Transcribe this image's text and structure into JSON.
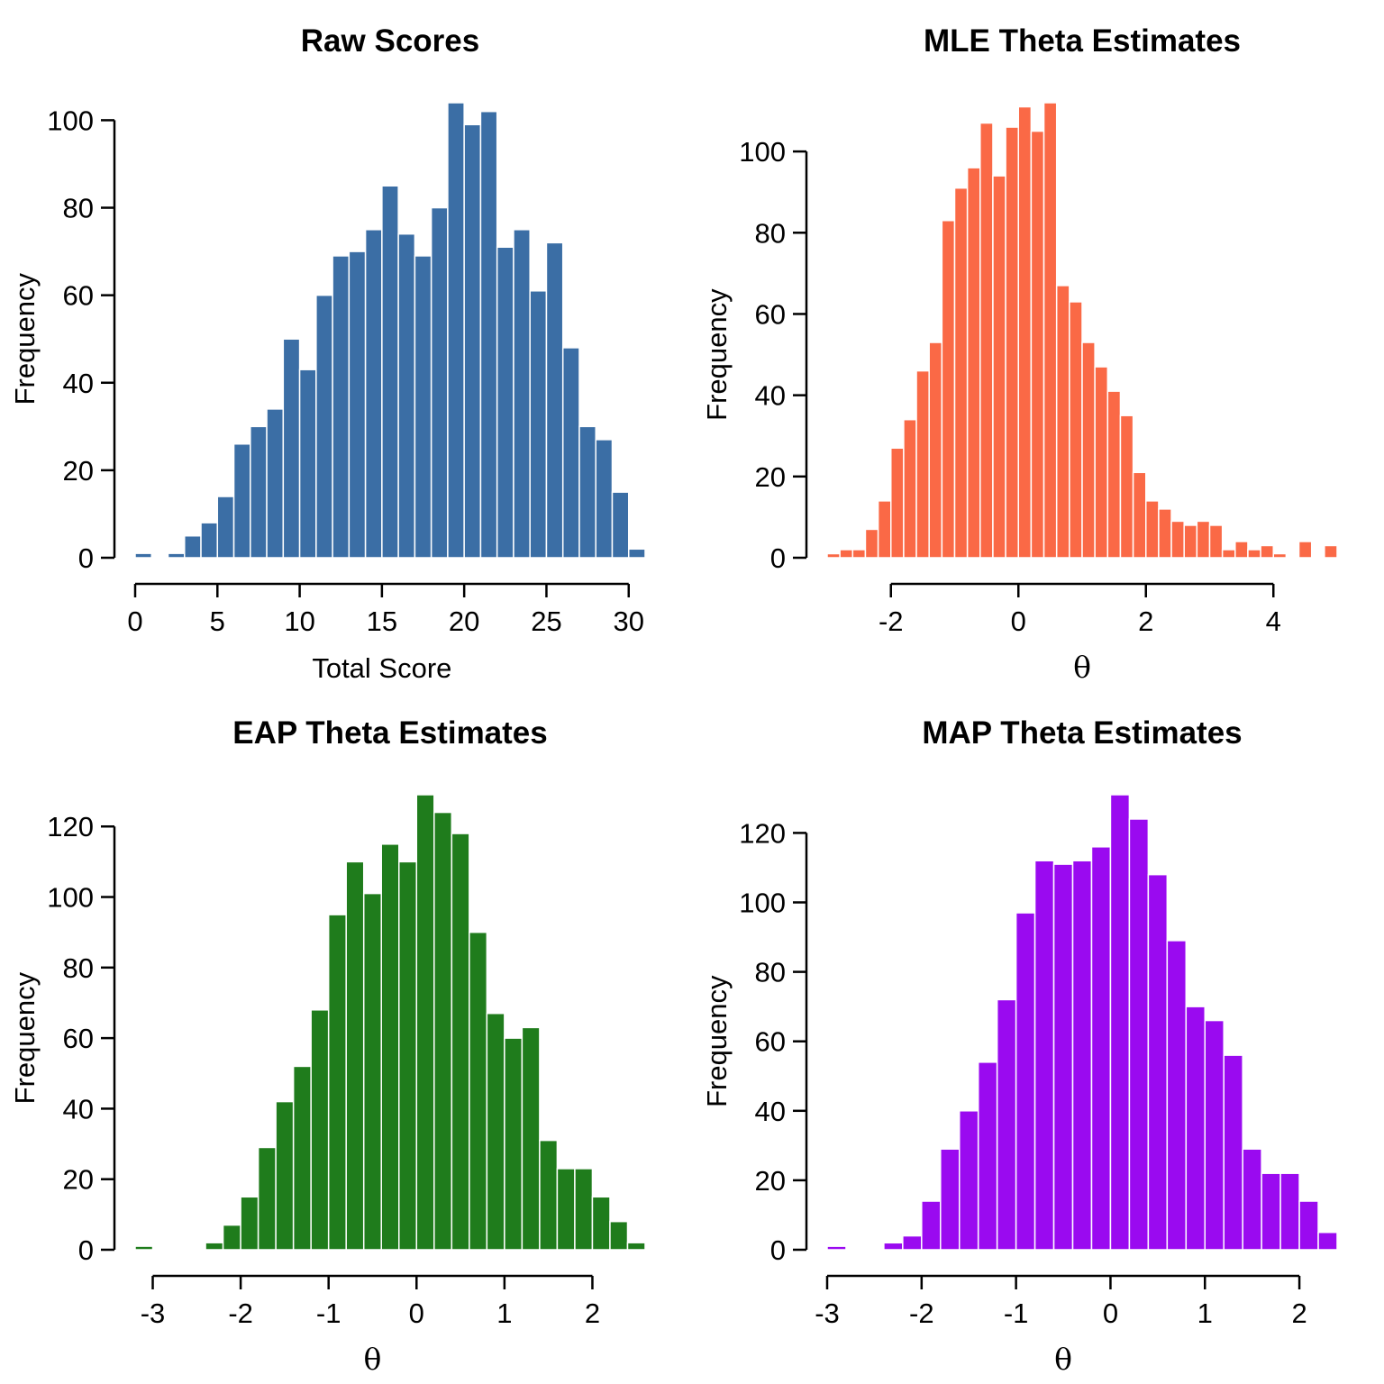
{
  "figure": {
    "background": "#FFFFFF",
    "layout": "2x2 grid of base-R style histograms"
  },
  "chart_data": [
    {
      "type": "bar",
      "subtype": "histogram",
      "title": "Raw Scores",
      "xlabel": "Total Score",
      "ylabel": "Frequency",
      "color": "#3B6EA5",
      "bin_start": 0,
      "bin_width": 1,
      "counts": [
        1,
        0,
        1,
        5,
        8,
        14,
        26,
        30,
        34,
        50,
        43,
        60,
        69,
        70,
        75,
        85,
        74,
        69,
        80,
        104,
        99,
        102,
        71,
        75,
        61,
        72,
        48,
        30,
        27,
        15,
        2
      ],
      "x_ticks": [
        0,
        5,
        10,
        15,
        20,
        25,
        30
      ],
      "y_ticks": [
        0,
        20,
        40,
        60,
        80,
        100
      ],
      "x_range": [
        0,
        31
      ],
      "y_peak": 104,
      "grid": false,
      "legend": false
    },
    {
      "type": "bar",
      "subtype": "histogram",
      "title": "MLE Theta Estimates",
      "xlabel": "θ",
      "ylabel": "Frequency",
      "color": "#FA6946",
      "bin_start": -3.0,
      "bin_width": 0.2,
      "counts": [
        1,
        2,
        2,
        7,
        14,
        27,
        34,
        46,
        53,
        83,
        91,
        96,
        107,
        94,
        106,
        111,
        105,
        112,
        67,
        63,
        53,
        47,
        41,
        35,
        21,
        14,
        12,
        9,
        8,
        9,
        8,
        2,
        4,
        2,
        3,
        1,
        0,
        4,
        0,
        3
      ],
      "x_ticks": [
        -2,
        0,
        2,
        4
      ],
      "y_ticks": [
        0,
        20,
        40,
        60,
        80,
        100
      ],
      "x_range": [
        -3,
        5
      ],
      "y_peak": 112,
      "grid": false,
      "legend": false
    },
    {
      "type": "bar",
      "subtype": "histogram",
      "title": "EAP Theta Estimates",
      "xlabel": "θ",
      "ylabel": "Frequency",
      "color": "#1F7C1C",
      "bin_start": -3.2,
      "bin_width": 0.2,
      "counts": [
        1,
        0,
        0,
        0,
        2,
        7,
        15,
        29,
        42,
        52,
        68,
        95,
        110,
        101,
        115,
        110,
        129,
        124,
        118,
        90,
        67,
        60,
        63,
        31,
        23,
        23,
        15,
        8,
        2
      ],
      "x_ticks": [
        -3,
        -2,
        -1,
        0,
        1,
        2
      ],
      "y_ticks": [
        0,
        20,
        40,
        60,
        80,
        100,
        120
      ],
      "x_range": [
        -3.2,
        2.6
      ],
      "y_peak": 129,
      "grid": false,
      "legend": false
    },
    {
      "type": "bar",
      "subtype": "histogram",
      "title": "MAP Theta Estimates",
      "xlabel": "θ",
      "ylabel": "Frequency",
      "color": "#9A0AF0",
      "bin_start": -3.0,
      "bin_width": 0.2,
      "counts": [
        1,
        0,
        0,
        2,
        4,
        14,
        29,
        40,
        54,
        72,
        97,
        112,
        111,
        112,
        116,
        131,
        124,
        108,
        89,
        70,
        66,
        56,
        29,
        22,
        22,
        14,
        5
      ],
      "x_ticks": [
        -3,
        -2,
        -1,
        0,
        1,
        2
      ],
      "y_ticks": [
        0,
        20,
        40,
        60,
        80,
        100,
        120
      ],
      "x_range": [
        -3,
        2.4
      ],
      "y_peak": 131,
      "grid": false,
      "legend": false
    }
  ]
}
